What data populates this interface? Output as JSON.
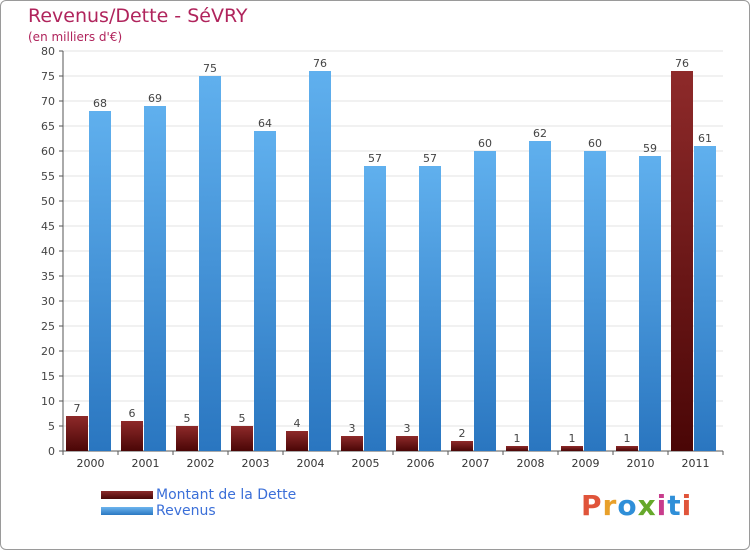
{
  "header": {
    "title": "Revenus/Dette - SéVRY",
    "subtitle": "(en milliers d'€)"
  },
  "logo": {
    "text": "Proxiti",
    "colors": [
      "#e0543a",
      "#e8a02a",
      "#2f8fd8",
      "#66a82b",
      "#c83c8c",
      "#2f8fd8",
      "#e0543a"
    ]
  },
  "colors": {
    "dette": "#6b1414",
    "revenus": "#3d96dc",
    "title": "#b0245c",
    "legend_text": "#3b6fd8"
  },
  "chart_data": {
    "type": "bar",
    "categories": [
      "2000",
      "2001",
      "2002",
      "2003",
      "2004",
      "2005",
      "2006",
      "2007",
      "2008",
      "2009",
      "2010",
      "2011"
    ],
    "series": [
      {
        "name": "Montant de la Dette",
        "values": [
          7,
          6,
          5,
          5,
          4,
          3,
          3,
          2,
          1,
          1,
          1,
          76
        ]
      },
      {
        "name": "Revenus",
        "values": [
          68,
          69,
          75,
          64,
          76,
          57,
          57,
          60,
          62,
          60,
          59,
          61
        ]
      }
    ],
    "ylim": [
      0,
      80
    ],
    "yticks": [
      0,
      5,
      10,
      15,
      20,
      25,
      30,
      35,
      40,
      45,
      50,
      55,
      60,
      65,
      70,
      75,
      80
    ],
    "grid": true,
    "legend_position": "bottom-left"
  }
}
